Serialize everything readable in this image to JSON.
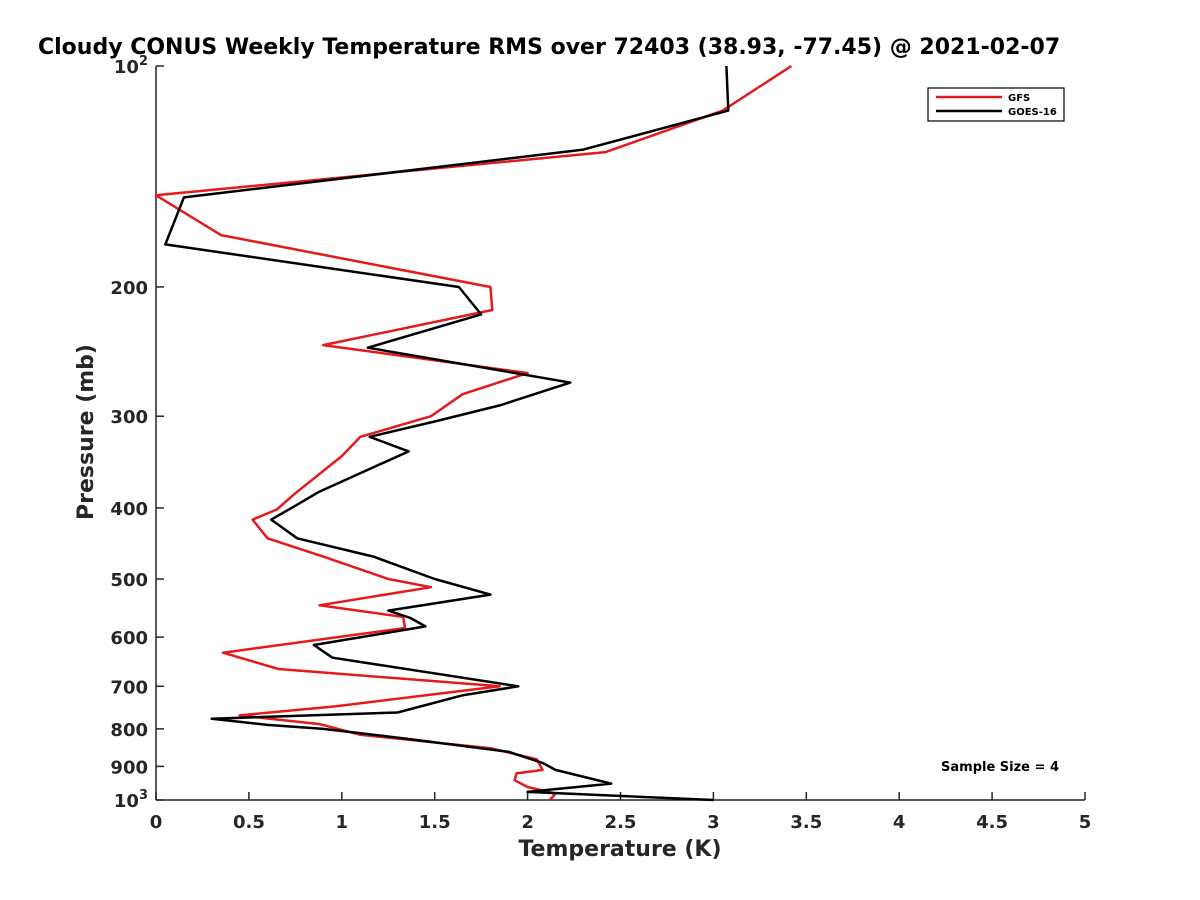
{
  "chart_data": {
    "type": "line",
    "title": "Cloudy CONUS Weekly Temperature RMS over 72403 (38.93, -77.45) @ 2021-02-07",
    "xlabel": "Temperature (K)",
    "ylabel": "Pressure (mb)",
    "xlim": [
      0,
      5
    ],
    "ylim": [
      100,
      1000
    ],
    "yscale": "log",
    "y_reversed": true,
    "grid": false,
    "legend_position": "top-right",
    "x_ticks": [
      "0",
      "0.5",
      "1",
      "1.5",
      "2",
      "2.5",
      "3",
      "3.5",
      "4",
      "4.5",
      "5"
    ],
    "x_tick_values": [
      0,
      0.5,
      1,
      1.5,
      2,
      2.5,
      3,
      3.5,
      4,
      4.5,
      5
    ],
    "y_ticks": [
      {
        "value": 100,
        "base": "10",
        "exp": "2"
      },
      {
        "value": 200,
        "label": "200"
      },
      {
        "value": 300,
        "label": "300"
      },
      {
        "value": 400,
        "label": "400"
      },
      {
        "value": 500,
        "label": "500"
      },
      {
        "value": 600,
        "label": "600"
      },
      {
        "value": 700,
        "label": "700"
      },
      {
        "value": 800,
        "label": "800"
      },
      {
        "value": 900,
        "label": "900"
      },
      {
        "value": 1000,
        "base": "10",
        "exp": "3"
      }
    ],
    "annotation": "Sample Size = 4",
    "series": [
      {
        "name": "GFS",
        "color": "#e41a1c",
        "points": [
          [
            3.42,
            100
          ],
          [
            3.05,
            115
          ],
          [
            2.42,
            131
          ],
          [
            0.0,
            150
          ],
          [
            0.35,
            170
          ],
          [
            1.8,
            200
          ],
          [
            1.81,
            215
          ],
          [
            0.9,
            240
          ],
          [
            2.0,
            262
          ],
          [
            1.65,
            280
          ],
          [
            1.48,
            300
          ],
          [
            1.1,
            320
          ],
          [
            1.0,
            340
          ],
          [
            0.75,
            382
          ],
          [
            0.65,
            402
          ],
          [
            0.52,
            415
          ],
          [
            0.6,
            440
          ],
          [
            0.9,
            466
          ],
          [
            1.25,
            500
          ],
          [
            1.48,
            513
          ],
          [
            0.88,
            543
          ],
          [
            1.33,
            563
          ],
          [
            1.34,
            583
          ],
          [
            0.36,
            630
          ],
          [
            0.66,
            663
          ],
          [
            1.85,
            700
          ],
          [
            0.97,
            745
          ],
          [
            0.45,
            767
          ],
          [
            0.88,
            788
          ],
          [
            1.1,
            815
          ],
          [
            1.8,
            850
          ],
          [
            2.05,
            880
          ],
          [
            2.08,
            910
          ],
          [
            1.94,
            920
          ],
          [
            1.93,
            940
          ],
          [
            2.0,
            960
          ],
          [
            2.15,
            980
          ],
          [
            2.12,
            1000
          ]
        ]
      },
      {
        "name": "GOES-16",
        "color": "#000000",
        "points": [
          [
            3.07,
            100
          ],
          [
            3.08,
            115
          ],
          [
            2.3,
            130
          ],
          [
            0.15,
            151
          ],
          [
            0.05,
            175
          ],
          [
            1.63,
            200
          ],
          [
            1.75,
            218
          ],
          [
            1.14,
            242
          ],
          [
            2.23,
            270
          ],
          [
            1.85,
            290
          ],
          [
            1.5,
            305
          ],
          [
            1.15,
            320
          ],
          [
            1.36,
            335
          ],
          [
            0.88,
            380
          ],
          [
            0.73,
            400
          ],
          [
            0.62,
            415
          ],
          [
            0.76,
            440
          ],
          [
            1.17,
            466
          ],
          [
            1.5,
            500
          ],
          [
            1.8,
            525
          ],
          [
            1.25,
            552
          ],
          [
            1.37,
            565
          ],
          [
            1.45,
            580
          ],
          [
            0.85,
            615
          ],
          [
            0.95,
            640
          ],
          [
            1.95,
            700
          ],
          [
            1.65,
            720
          ],
          [
            1.3,
            760
          ],
          [
            0.3,
            775
          ],
          [
            0.6,
            790
          ],
          [
            0.9,
            800
          ],
          [
            1.35,
            825
          ],
          [
            1.9,
            860
          ],
          [
            2.08,
            890
          ],
          [
            2.15,
            910
          ],
          [
            2.45,
            950
          ],
          [
            2.0,
            975
          ],
          [
            3.0,
            1000
          ]
        ]
      }
    ]
  }
}
